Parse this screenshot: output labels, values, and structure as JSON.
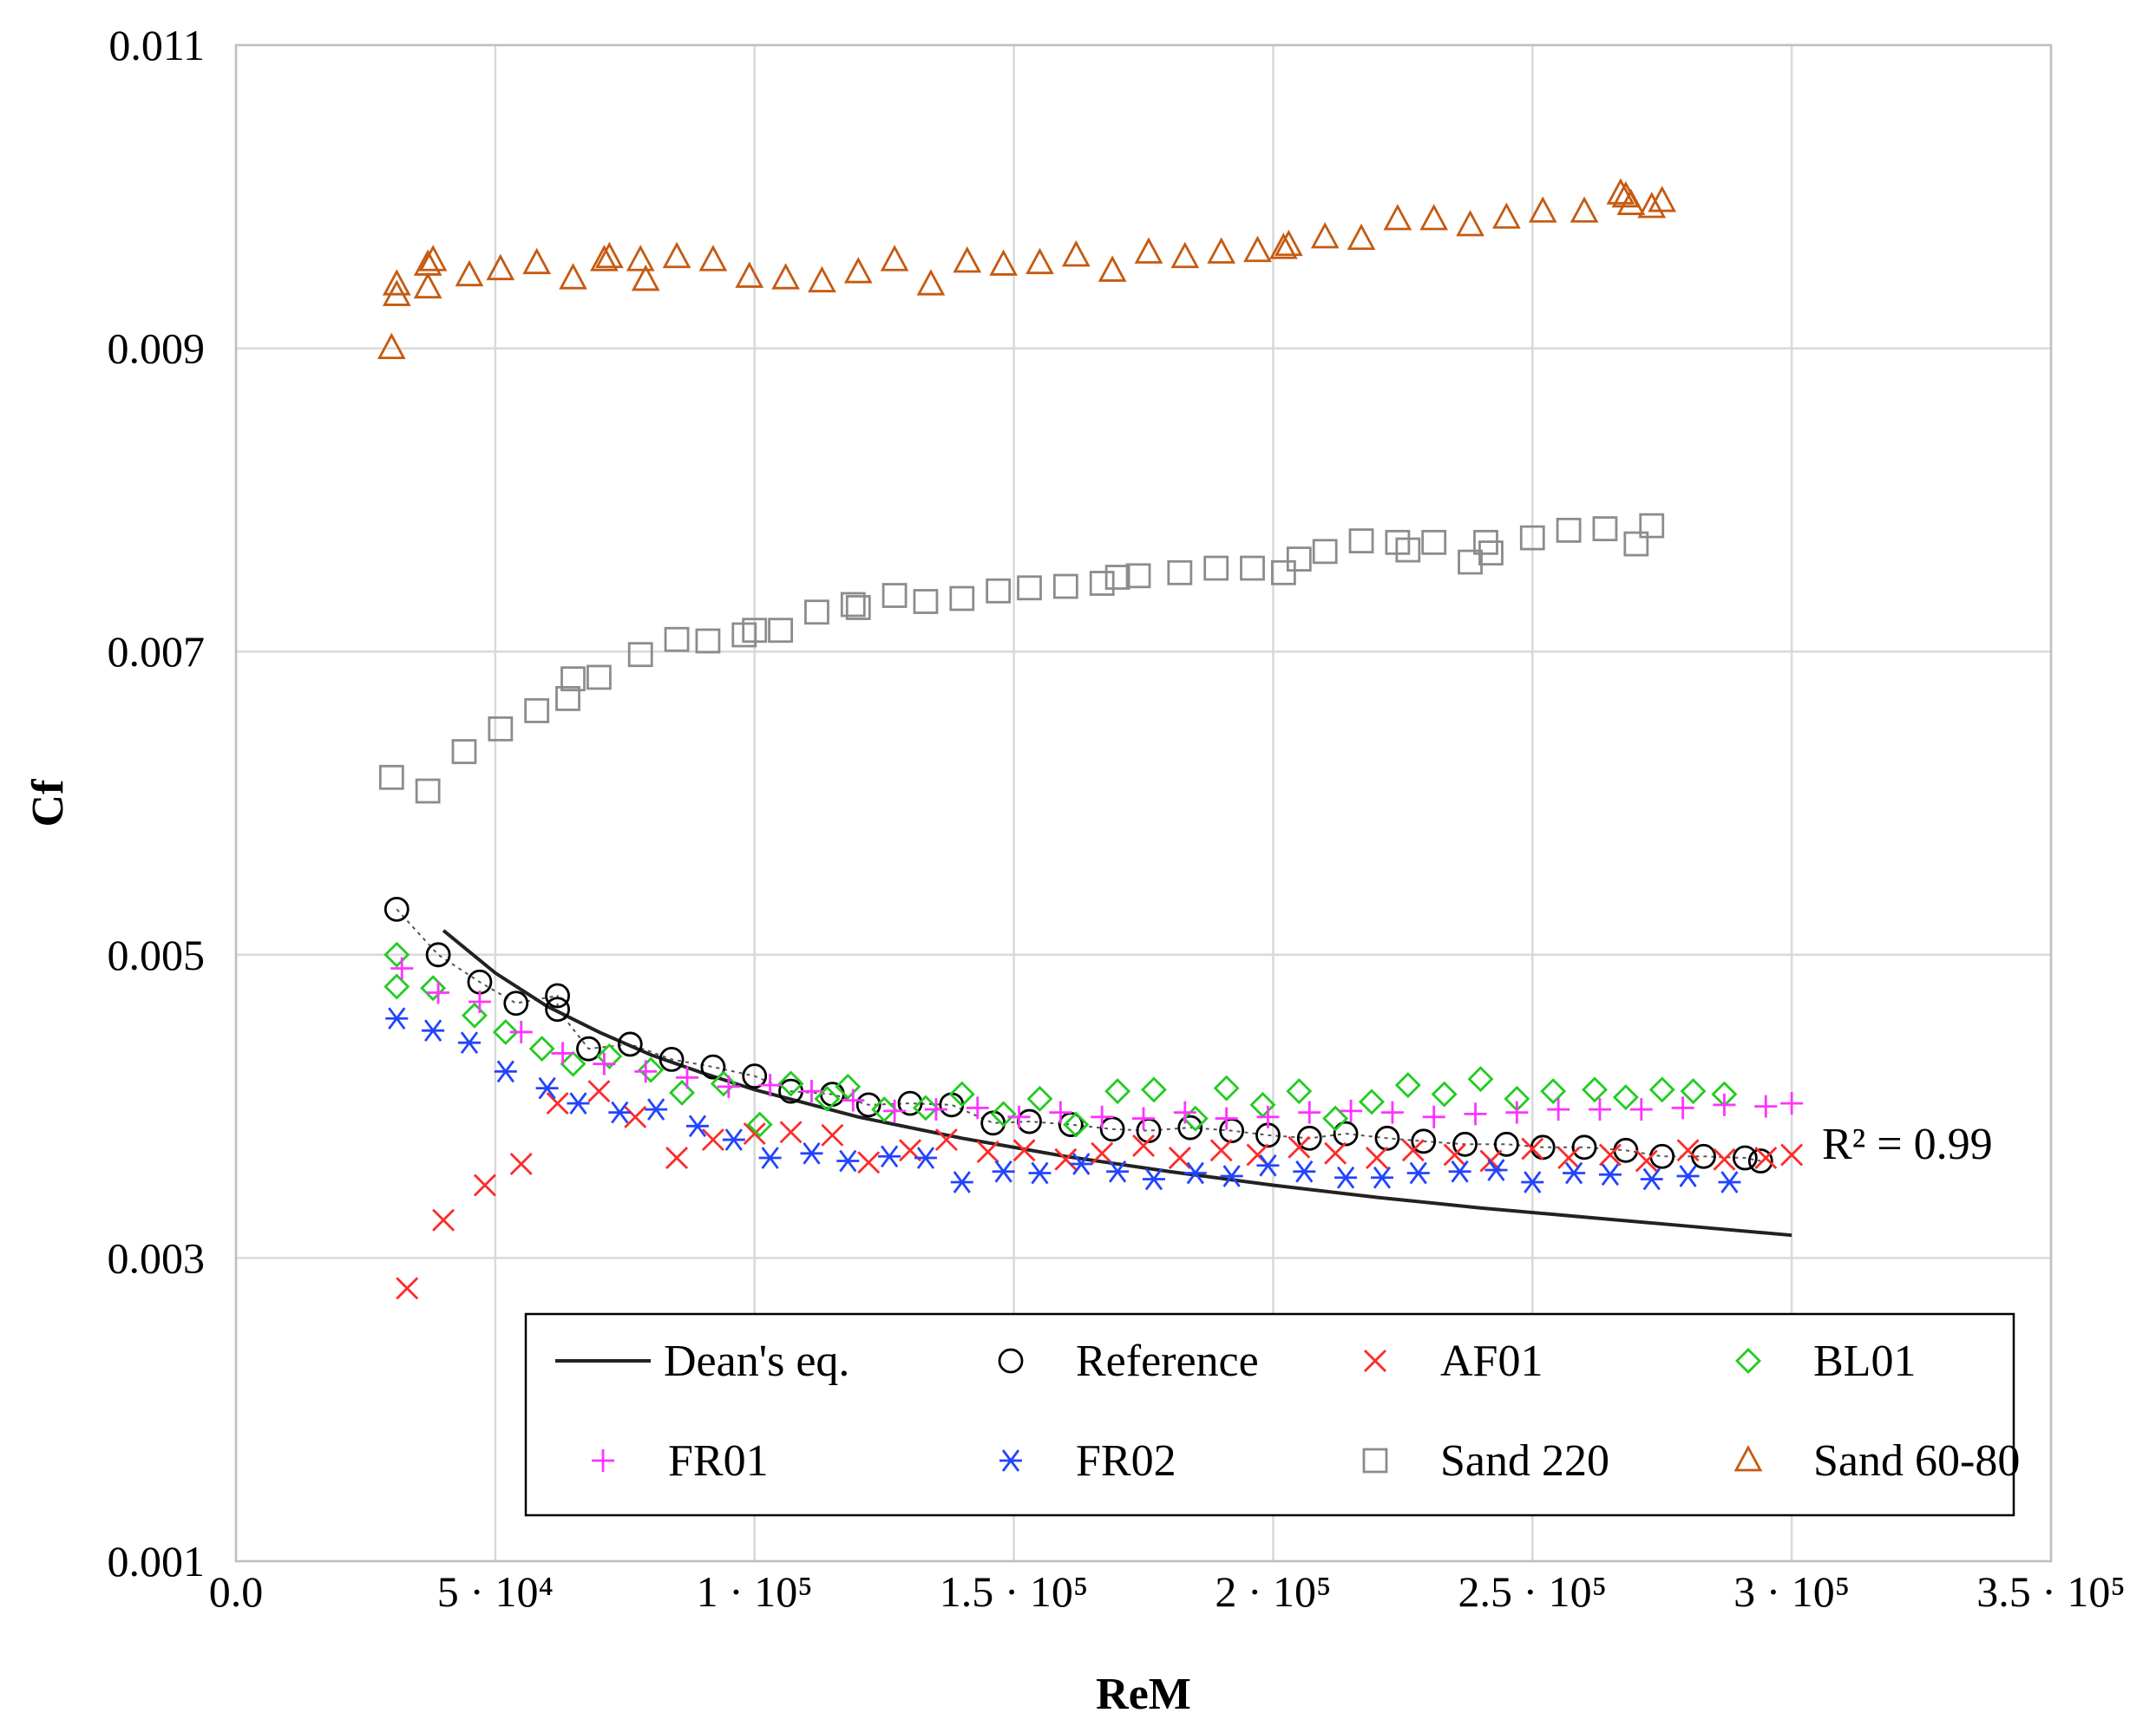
{
  "chart_data": {
    "type": "scatter",
    "xlabel": "ReM",
    "ylabel": "Cf",
    "xlim": [
      0,
      350000
    ],
    "ylim": [
      0.001,
      0.011
    ],
    "x_ticks": [
      0,
      50000,
      100000,
      150000,
      200000,
      250000,
      300000,
      350000
    ],
    "x_tick_labels": [
      "0.0",
      "5 · 10⁴",
      "1 · 10⁵",
      "1.5 · 10⁵",
      "2 · 10⁵",
      "2.5 · 10⁵",
      "3 · 10⁵",
      "3.5 · 10⁵"
    ],
    "y_ticks": [
      0.001,
      0.003,
      0.005,
      0.007,
      0.009,
      0.011
    ],
    "y_tick_labels": [
      "0.001",
      "0.003",
      "0.005",
      "0.007",
      "0.009",
      "0.011"
    ],
    "grid": true,
    "legend_position": "bottom",
    "annotation": "R² = 0.99",
    "series": [
      {
        "name": "Dean's eq.",
        "marker": "line",
        "color": "#222222",
        "x": [
          40000,
          50000,
          60000,
          70000,
          80000,
          90000,
          100000,
          120000,
          140000,
          160000,
          180000,
          200000,
          220000,
          240000,
          260000,
          280000,
          300000
        ],
        "y": [
          0.00516,
          0.00488,
          0.00466,
          0.00449,
          0.00434,
          0.00422,
          0.00411,
          0.00393,
          0.00379,
          0.00367,
          0.00357,
          0.00348,
          0.0034,
          0.00333,
          0.00327,
          0.00321,
          0.00315
        ]
      },
      {
        "name": "Reference",
        "marker": "circle",
        "color": "#000000",
        "x": [
          31000,
          39000,
          47000,
          54000,
          62000,
          62000,
          68000,
          76000,
          84000,
          92000,
          100000,
          107000,
          115000,
          122000,
          130000,
          138000,
          146000,
          153000,
          161000,
          169000,
          176000,
          184000,
          192000,
          199000,
          207000,
          214000,
          222000,
          229000,
          237000,
          245000,
          252000,
          260000,
          268000,
          275000,
          283000,
          291000,
          294000
        ],
        "y": [
          0.0053,
          0.005,
          0.00482,
          0.00468,
          0.00473,
          0.00464,
          0.00438,
          0.00441,
          0.00431,
          0.00426,
          0.0042,
          0.0041,
          0.00408,
          0.00401,
          0.00402,
          0.00401,
          0.00389,
          0.0039,
          0.00388,
          0.00385,
          0.00384,
          0.00386,
          0.00384,
          0.00381,
          0.00379,
          0.00382,
          0.00379,
          0.00377,
          0.00375,
          0.00375,
          0.00373,
          0.00373,
          0.00371,
          0.00367,
          0.00367,
          0.00366,
          0.00364
        ]
      },
      {
        "name": "AF01",
        "marker": "x",
        "color": "#ff2a2a",
        "x": [
          33000,
          40000,
          48000,
          55000,
          62000,
          70000,
          77000,
          85000,
          92000,
          100000,
          107000,
          115000,
          122000,
          130000,
          137000,
          145000,
          152000,
          160000,
          167000,
          175000,
          182000,
          190000,
          197000,
          205000,
          212000,
          220000,
          227000,
          235000,
          242000,
          250000,
          257000,
          265000,
          272000,
          280000,
          287000,
          295000,
          300000
        ],
        "y": [
          0.0028,
          0.00325,
          0.00348,
          0.00362,
          0.00402,
          0.0041,
          0.00393,
          0.00366,
          0.00378,
          0.00382,
          0.00383,
          0.00381,
          0.00363,
          0.00371,
          0.00378,
          0.0037,
          0.00371,
          0.00365,
          0.00369,
          0.00374,
          0.00366,
          0.00371,
          0.00368,
          0.00373,
          0.00369,
          0.00366,
          0.00371,
          0.00368,
          0.00364,
          0.00372,
          0.00366,
          0.00368,
          0.00364,
          0.00371,
          0.00365,
          0.00366,
          0.00368
        ]
      },
      {
        "name": "BL01",
        "marker": "diamond",
        "color": "#22cc22",
        "x": [
          31000,
          31000,
          38000,
          46000,
          52000,
          59000,
          65000,
          72000,
          80000,
          86000,
          94000,
          101000,
          107000,
          114000,
          118000,
          125000,
          133000,
          140000,
          148000,
          155000,
          162000,
          170000,
          177000,
          185000,
          191000,
          198000,
          205000,
          212000,
          219000,
          226000,
          233000,
          240000,
          247000,
          254000,
          262000,
          268000,
          275000,
          281000,
          287000
        ],
        "y": [
          0.005,
          0.00479,
          0.00478,
          0.0046,
          0.00449,
          0.00438,
          0.00428,
          0.00433,
          0.00424,
          0.00409,
          0.00415,
          0.00388,
          0.00415,
          0.00405,
          0.00413,
          0.00398,
          0.00399,
          0.00408,
          0.00395,
          0.00405,
          0.00388,
          0.0041,
          0.00411,
          0.00392,
          0.00412,
          0.00401,
          0.0041,
          0.00392,
          0.00403,
          0.00414,
          0.00408,
          0.00418,
          0.00405,
          0.0041,
          0.00411,
          0.00406,
          0.00411,
          0.0041,
          0.00408
        ]
      },
      {
        "name": "FR01",
        "marker": "plus",
        "color": "#ff33ff",
        "x": [
          32000,
          39000,
          47000,
          55000,
          63000,
          71000,
          79000,
          87000,
          95000,
          103000,
          111000,
          119000,
          127000,
          135000,
          143000,
          151000,
          159000,
          167000,
          175000,
          183000,
          191000,
          199000,
          207000,
          215000,
          223000,
          231000,
          239000,
          247000,
          255000,
          263000,
          271000,
          279000,
          287000,
          295000,
          300000
        ],
        "y": [
          0.00491,
          0.00475,
          0.00469,
          0.00449,
          0.00435,
          0.00428,
          0.00423,
          0.00419,
          0.00413,
          0.00414,
          0.0041,
          0.00404,
          0.00397,
          0.00398,
          0.00399,
          0.00393,
          0.00396,
          0.00393,
          0.00392,
          0.00396,
          0.00392,
          0.00393,
          0.00396,
          0.00397,
          0.00396,
          0.00393,
          0.00395,
          0.00396,
          0.00398,
          0.00398,
          0.00398,
          0.00399,
          0.00401,
          0.004,
          0.00402
        ]
      },
      {
        "name": "FR02",
        "marker": "asterisk",
        "color": "#2244ff",
        "x": [
          31000,
          38000,
          45000,
          52000,
          60000,
          66000,
          74000,
          81000,
          89000,
          96000,
          103000,
          111000,
          118000,
          126000,
          133000,
          140000,
          148000,
          155000,
          163000,
          170000,
          177000,
          185000,
          192000,
          199000,
          206000,
          214000,
          221000,
          228000,
          236000,
          243000,
          250000,
          258000,
          265000,
          273000,
          280000,
          288000
        ],
        "y": [
          0.00458,
          0.0045,
          0.00442,
          0.00423,
          0.00412,
          0.00402,
          0.00396,
          0.00398,
          0.00387,
          0.00378,
          0.00366,
          0.00369,
          0.00364,
          0.00367,
          0.00366,
          0.0035,
          0.00357,
          0.00356,
          0.00362,
          0.00357,
          0.00352,
          0.00356,
          0.00354,
          0.00361,
          0.00357,
          0.00353,
          0.00353,
          0.00356,
          0.00357,
          0.00358,
          0.0035,
          0.00356,
          0.00355,
          0.00352,
          0.00354,
          0.0035
        ]
      },
      {
        "name": "Sand 220",
        "marker": "square",
        "color": "#8c8c8c",
        "x": [
          30000,
          37000,
          44000,
          51000,
          58000,
          64000,
          65000,
          70000,
          78000,
          85000,
          91000,
          98000,
          100000,
          105000,
          112000,
          119000,
          120000,
          127000,
          133000,
          140000,
          147000,
          153000,
          160000,
          167000,
          170000,
          174000,
          182000,
          189000,
          196000,
          202000,
          205000,
          210000,
          217000,
          224000,
          226000,
          231000,
          238000,
          241000,
          242000,
          250000,
          257000,
          264000,
          270000,
          273000
        ],
        "y": [
          0.00617,
          0.00608,
          0.00634,
          0.00649,
          0.00661,
          0.00669,
          0.00682,
          0.00683,
          0.00698,
          0.00708,
          0.00707,
          0.00711,
          0.00714,
          0.00714,
          0.00726,
          0.00731,
          0.00729,
          0.00737,
          0.00733,
          0.00735,
          0.0074,
          0.00742,
          0.00743,
          0.00745,
          0.00749,
          0.0075,
          0.00752,
          0.00755,
          0.00755,
          0.00752,
          0.00761,
          0.00766,
          0.00773,
          0.00772,
          0.00767,
          0.00772,
          0.00759,
          0.00772,
          0.00765,
          0.00775,
          0.0078,
          0.00781,
          0.00771,
          0.00783
        ]
      },
      {
        "name": "Sand 60-80",
        "marker": "triangle",
        "color": "#c55a11",
        "x": [
          30000,
          31000,
          31000,
          37000,
          37000,
          38000,
          45000,
          51000,
          58000,
          65000,
          71000,
          72000,
          78000,
          79000,
          85000,
          92000,
          99000,
          106000,
          113000,
          120000,
          127000,
          134000,
          141000,
          148000,
          155000,
          162000,
          169000,
          176000,
          183000,
          190000,
          197000,
          202000,
          203000,
          210000,
          217000,
          224000,
          231000,
          238000,
          245000,
          252000,
          260000,
          267000,
          268000,
          269000,
          273000,
          275000
        ],
        "y": [
          0.009,
          0.00935,
          0.00942,
          0.00955,
          0.0094,
          0.00958,
          0.00948,
          0.00952,
          0.00956,
          0.00946,
          0.00958,
          0.0096,
          0.00958,
          0.00945,
          0.0096,
          0.00958,
          0.00947,
          0.00946,
          0.00944,
          0.0095,
          0.00958,
          0.00942,
          0.00957,
          0.00955,
          0.00956,
          0.00961,
          0.00951,
          0.00963,
          0.0096,
          0.00963,
          0.00964,
          0.00966,
          0.00968,
          0.00973,
          0.00972,
          0.00985,
          0.00985,
          0.00981,
          0.00986,
          0.0099,
          0.0099,
          0.01002,
          0.01,
          0.00995,
          0.00993,
          0.00997
        ]
      }
    ]
  }
}
